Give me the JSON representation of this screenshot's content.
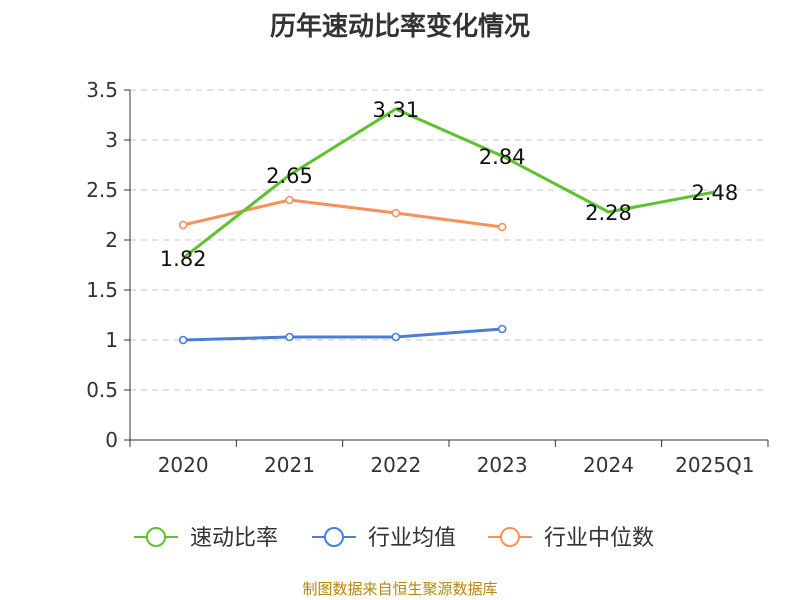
{
  "chart_data": {
    "type": "line",
    "title": "历年速动比率变化情况",
    "categories": [
      "2020",
      "2021",
      "2022",
      "2023",
      "2024",
      "2025Q1"
    ],
    "y_ticks": [
      "0",
      "0.5",
      "1",
      "1.5",
      "2",
      "2.5",
      "3",
      "3.5"
    ],
    "ylim": [
      0,
      3.5
    ],
    "grid": true,
    "legend_position": "bottom",
    "series": [
      {
        "name": "速动比率",
        "color": "#5cc22d",
        "values": [
          1.82,
          2.65,
          3.31,
          2.84,
          2.28,
          2.48
        ],
        "labels": [
          "1.82",
          "2.65",
          "3.31",
          "2.84",
          "2.28",
          "2.48"
        ],
        "show_labels": true,
        "markers": false
      },
      {
        "name": "行业均值",
        "color": "#4a7fd4",
        "values": [
          1.0,
          1.03,
          1.03,
          1.11,
          null,
          null
        ],
        "show_labels": false,
        "markers": true
      },
      {
        "name": "行业中位数",
        "color": "#f5915a",
        "values": [
          2.15,
          2.4,
          2.27,
          2.13,
          null,
          null
        ],
        "show_labels": false,
        "markers": true
      }
    ]
  },
  "source": "制图数据来自恒生聚源数据库"
}
